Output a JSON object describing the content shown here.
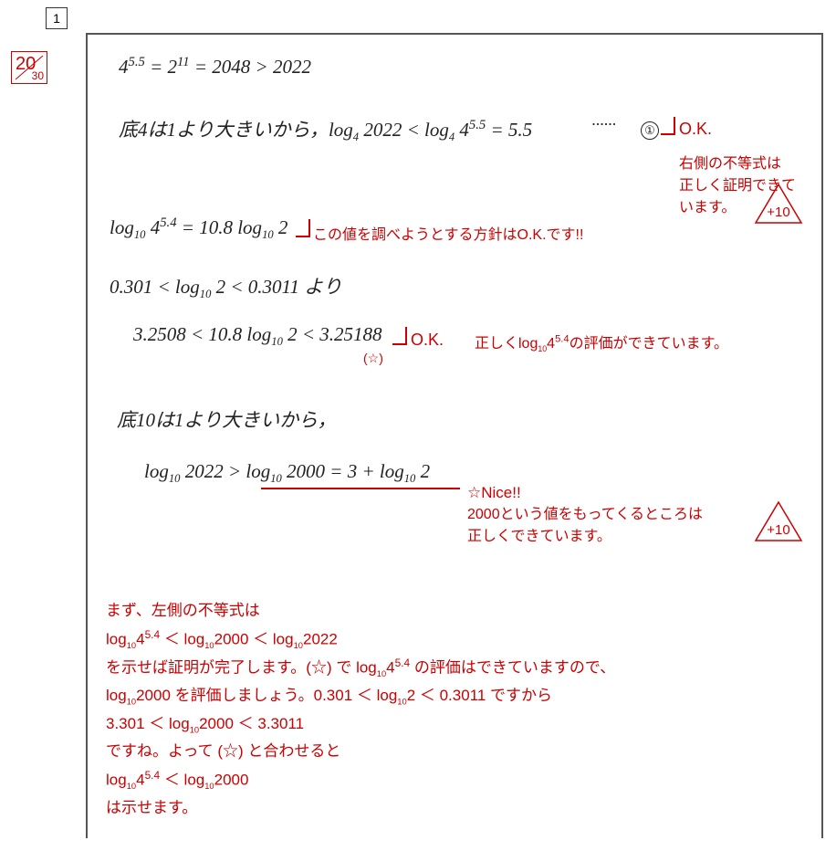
{
  "question_number": "1",
  "score": {
    "obtained": "20",
    "total": "30"
  },
  "handwriting": {
    "line1": "4<sup>5.5</sup> = 2<sup>11</sup> = 2048 > 2022",
    "line2_a": "底4は1より大きいから，log<sub>4</sub> 2022 < log<sub>4</sub> 4<sup>5.5</sup> = 5.5",
    "line2_b": "······ ",
    "line2_c": "①",
    "line3": "log<sub>10</sub> 4<sup>5.4</sup> = 10.8 log<sub>10</sub> 2",
    "line4": "0.301 < log<sub>10</sub> 2 < 0.3011 より",
    "line5": "3.2508 < 10.8 log<sub>10</sub> 2 < 3.25188",
    "line5_star": "(☆)",
    "line6": "底10は1より大きいから，",
    "line7": "log<sub>10</sub> 2022 > log<sub>10</sub> 2000 = 3 + log<sub>10</sub> 2"
  },
  "annotations": {
    "ok1": "O.K.",
    "right_ineq": "右側の不等式は\n正しく証明できて\nいます。",
    "plan_ok": "この値を調べようとする方針はO.K.です!!",
    "ok2": "O.K.",
    "eval_ok": "正しくlog<sub>10</sub>4<sup>5.4</sup>の評価ができています。",
    "nice": "☆Nice!!",
    "nice_body": "2000という値をもってくるところは\n正しくできています。",
    "points1": "+10",
    "points2": "+10",
    "advice_l1": "まず、左側の不等式は",
    "advice_l2": "log<sub>10</sub>4<sup>5.4</sup> ＜ log<sub>10</sub>2000 ＜ log<sub>10</sub>2022",
    "advice_l3": "を示せば証明が完了します。(☆) で log<sub>10</sub>4<sup>5.4</sup> の評価はできていますので、",
    "advice_l4": "log<sub>10</sub>2000 を評価しましょう。0.301 ＜ log<sub>10</sub>2 ＜ 0.3011 ですから",
    "advice_l5": "3.301 ＜ log<sub>10</sub>2000 ＜ 3.3011",
    "advice_l6": "ですね。よって (☆) と合わせると",
    "advice_l7": "log<sub>10</sub>4<sup>5.4</sup> ＜ log<sub>10</sub>2000",
    "advice_l8": "は示せます。"
  },
  "layout": {
    "colors": {
      "ink": "#222222",
      "red": "#cc0000",
      "frame": "#555555",
      "bg": "#ffffff"
    }
  }
}
